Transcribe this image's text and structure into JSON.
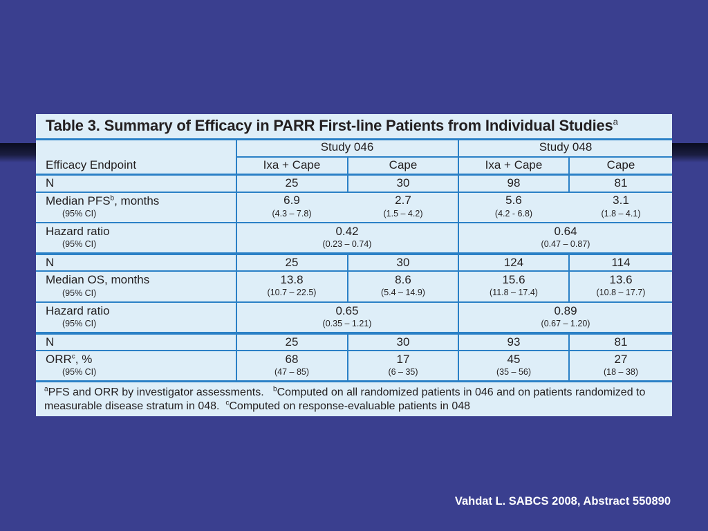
{
  "title": {
    "text": "Table 3. Summary of Efficacy in PARR First-line Patients from Individual Studies",
    "sup": "a"
  },
  "header": {
    "endpoint_label": "Efficacy Endpoint",
    "study1": "Study 046",
    "study2": "Study 048",
    "arms": [
      "Ixa + Cape",
      "Cape",
      "Ixa + Cape",
      "Cape"
    ]
  },
  "rows": {
    "n1": {
      "label": "N",
      "values": [
        "25",
        "30",
        "98",
        "81"
      ]
    },
    "pfs": {
      "label": "Median PFS",
      "label_sup": "b",
      "label_suffix": ", months",
      "sub": "(95% CI)",
      "values": [
        "6.9",
        "2.7",
        "5.6",
        "3.1"
      ],
      "cis": [
        "(4.3 – 7.8)",
        "(1.5 – 4.2)",
        "(4.2 - 6.8)",
        "(1.8 – 4.1)"
      ]
    },
    "hr1": {
      "label": "Hazard ratio",
      "sub": "(95% CI)",
      "values": [
        "0.42",
        "0.64"
      ],
      "cis": [
        "(0.23 – 0.74)",
        "(0.47 – 0.87)"
      ]
    },
    "n2": {
      "label": "N",
      "values": [
        "25",
        "30",
        "124",
        "114"
      ]
    },
    "os": {
      "label": "Median OS, months",
      "sub": "(95% CI)",
      "values": [
        "13.8",
        "8.6",
        "15.6",
        "13.6"
      ],
      "cis": [
        "(10.7 – 22.5)",
        "(5.4 – 14.9)",
        "(11.8 – 17.4)",
        "(10.8 – 17.7)"
      ]
    },
    "hr2": {
      "label": "Hazard ratio",
      "sub": "(95% CI)",
      "values": [
        "0.65",
        "0.89"
      ],
      "cis": [
        "(0.35 – 1.21)",
        "(0.67 – 1.20)"
      ]
    },
    "n3": {
      "label": "N",
      "values": [
        "25",
        "30",
        "93",
        "81"
      ]
    },
    "orr": {
      "label": "ORR",
      "label_sup": "c",
      "label_suffix": ", %",
      "sub": "(95% CI)",
      "values": [
        "68",
        "17",
        "45",
        "27"
      ],
      "cis": [
        "(47 – 85)",
        "(6 – 35)",
        "(35 – 56)",
        "(18 – 38)"
      ]
    }
  },
  "footnotes": {
    "a_sup": "a",
    "a_text": "PFS and ORR by investigator assessments.",
    "b_sup": "b",
    "b_text": "Computed on all randomized patients in 046 and on patients randomized to measurable disease stratum in 048.",
    "c_sup": "c",
    "c_text": "Computed on response-evaluable patients in 048"
  },
  "citation": "Vahdat L. SABCS 2008, Abstract 550890",
  "colors": {
    "background": "#3a3f8f",
    "table_bg": "#deeef8",
    "rule": "#2a80c6",
    "citation": "#ffffff"
  }
}
